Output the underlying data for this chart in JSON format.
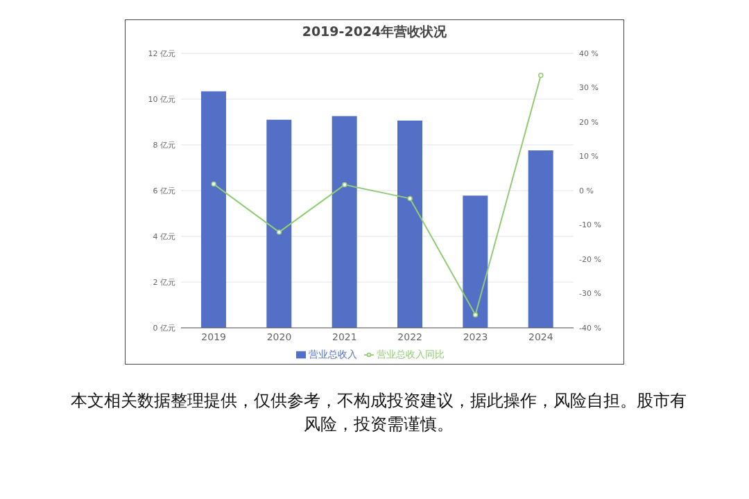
{
  "chart_data": {
    "type": "bar",
    "title": "2019-2024年营收状况",
    "categories": [
      "2019",
      "2020",
      "2021",
      "2022",
      "2023",
      "2024"
    ],
    "series": [
      {
        "name": "营业总收入",
        "color": "#5470c6",
        "values": [
          10.34,
          9.1,
          9.26,
          9.06,
          5.78,
          7.76
        ]
      },
      {
        "name": "营业总收入同比",
        "type": "line",
        "axis": "y2",
        "color": "#91cc75",
        "values": [
          1.9,
          -12.1,
          1.7,
          -2.3,
          -36.2,
          33.6
        ]
      }
    ],
    "ylim": [
      0,
      12
    ],
    "yticks": [
      {
        "value": 0,
        "label": "0 亿元"
      },
      {
        "value": 2,
        "label": "2 亿元"
      },
      {
        "value": 4,
        "label": "4 亿元"
      },
      {
        "value": 6,
        "label": "6 亿元"
      },
      {
        "value": 8,
        "label": "8 亿元"
      },
      {
        "value": 10,
        "label": "10 亿元"
      },
      {
        "value": 12,
        "label": "12 亿元"
      }
    ],
    "y2lim": [
      -40,
      40
    ],
    "y2ticks": [
      {
        "value": -40,
        "label": "-40 %"
      },
      {
        "value": -30,
        "label": "-30 %"
      },
      {
        "value": -20,
        "label": "-20 %"
      },
      {
        "value": -10,
        "label": "-10 %"
      },
      {
        "value": 0,
        "label": "0 %"
      },
      {
        "value": 10,
        "label": "10 %"
      },
      {
        "value": 20,
        "label": "20 %"
      },
      {
        "value": 30,
        "label": "30 %"
      },
      {
        "value": 40,
        "label": "40 %"
      }
    ],
    "grid": "y",
    "legend": "bottom",
    "marker": "circle",
    "annotations": [
      "本文相关数据整理提供，仅供参考，不构成投资建议，据此操作，风险自担。股市有风险，投资需谨慎。"
    ]
  }
}
